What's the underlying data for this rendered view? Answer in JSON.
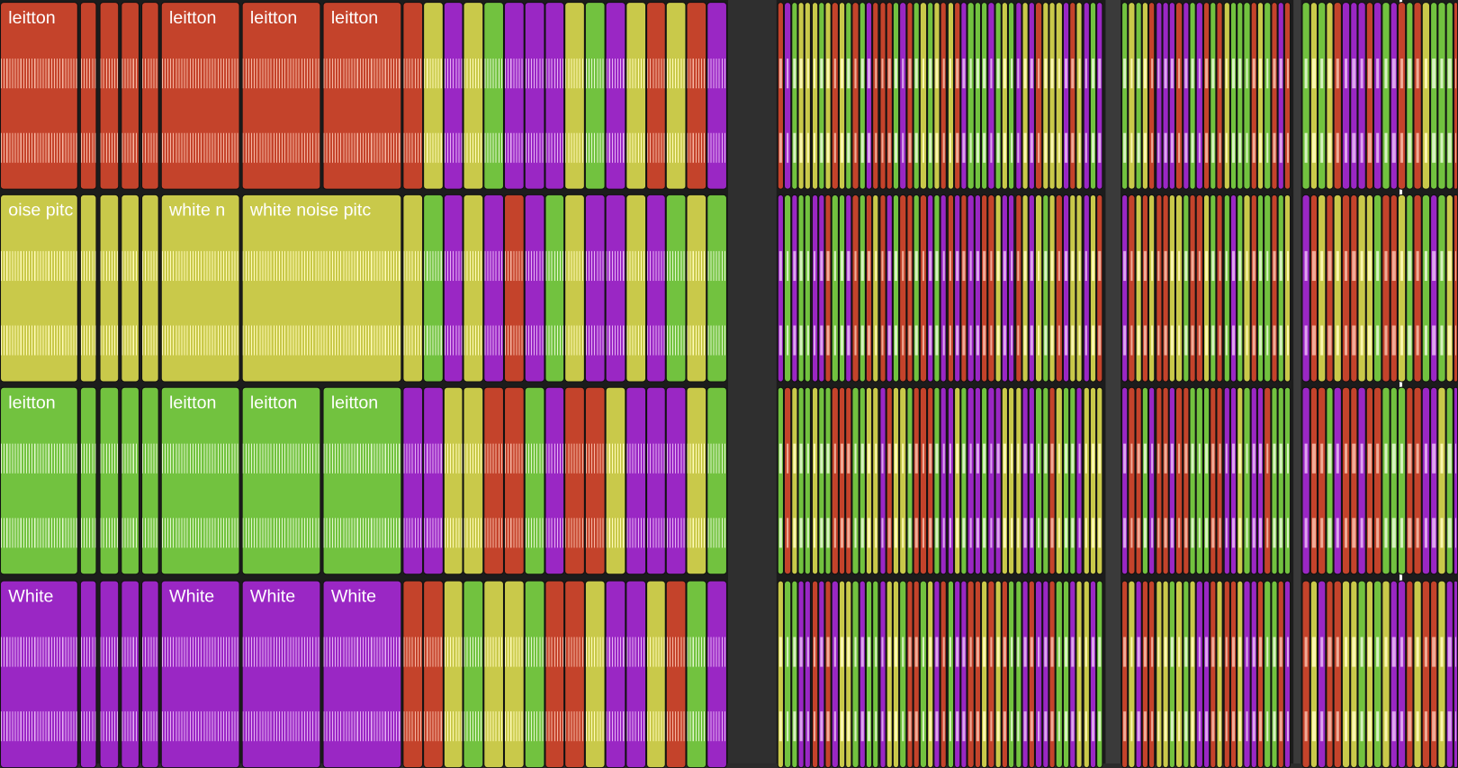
{
  "tracks": [
    {
      "labels": [
        "leitton",
        "leitton",
        "leitton",
        "leitton"
      ]
    },
    {
      "labels": [
        "oise pitc",
        "white n",
        "white noise pitc"
      ]
    },
    {
      "labels": [
        "leitton",
        "leitton",
        "leitton",
        "leitton"
      ]
    },
    {
      "labels": [
        "White",
        "White",
        "White",
        "White"
      ]
    }
  ]
}
